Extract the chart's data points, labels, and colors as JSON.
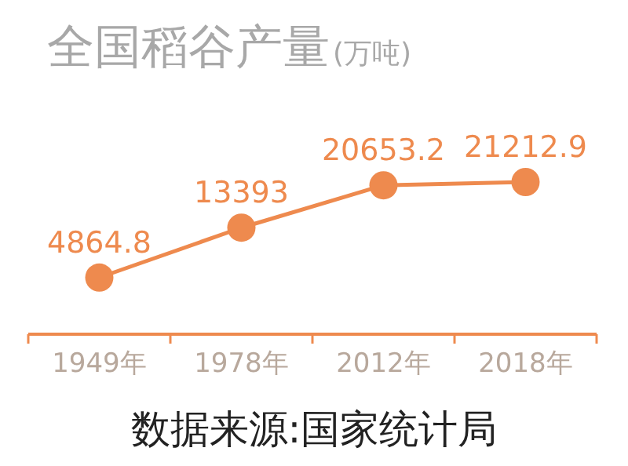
{
  "chart_data": {
    "type": "line",
    "title": "全国稻谷产量",
    "subtitle": "(万吨)",
    "categories": [
      "1949年",
      "1978年",
      "2012年",
      "2018年"
    ],
    "series": [
      {
        "color": "#ee8a4e",
        "values": [
          4864.8,
          13393,
          20653.2,
          21212.9
        ]
      }
    ],
    "data_labels": true,
    "marker": "circle",
    "annotations": [
      "数据来源:国家统计局"
    ]
  }
}
